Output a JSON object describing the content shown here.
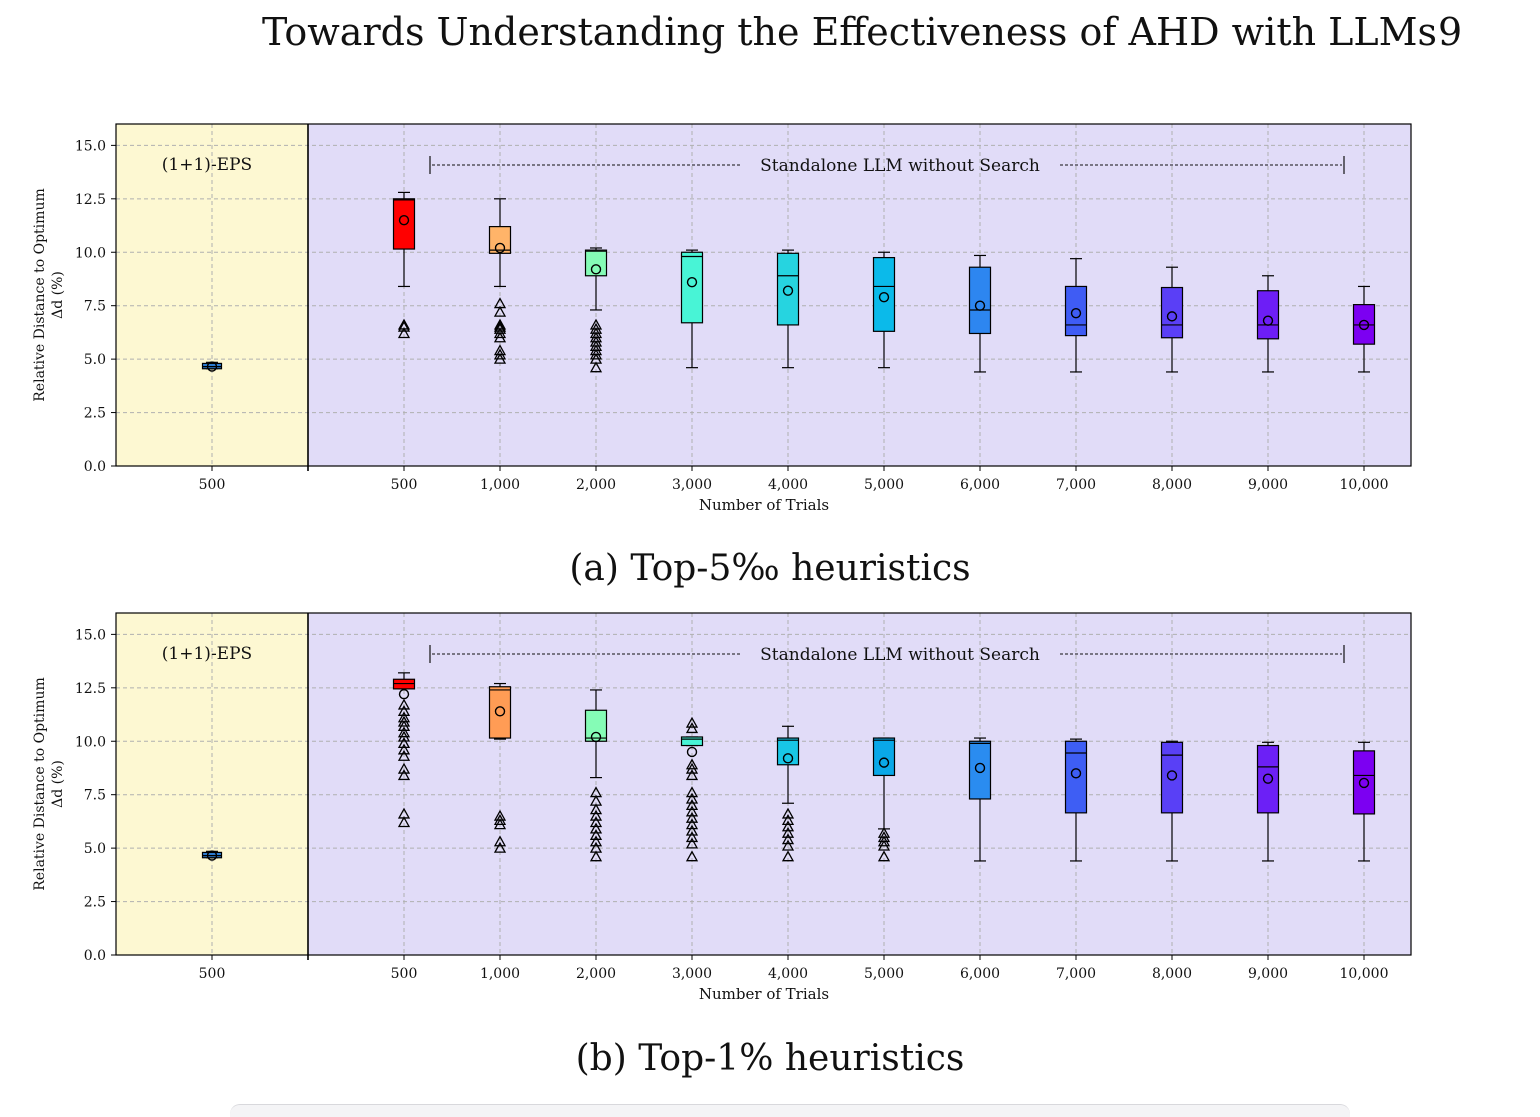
{
  "header": {
    "running_title": "Towards Understanding the Effectiveness of AHD with LLMs",
    "page_number": "9"
  },
  "chart_data": [
    {
      "type": "boxplot",
      "ylabel": "Relative Distance to Optimum",
      "ylabel2": "Δd (%)",
      "xlabel": "Number of Trials",
      "ylim": [
        0,
        16
      ],
      "yticks": [
        "0.0",
        "2.5",
        "5.0",
        "7.5",
        "10.0",
        "12.5",
        "15.0"
      ],
      "grid": true,
      "region_labels": {
        "left": "(1+1)-EPS",
        "right": "Standalone LLM without Search"
      },
      "region_colors": {
        "left": "#fdf8d2",
        "right": "#e1dcf8"
      },
      "series": [
        {
          "x": "500",
          "group": "(1+1)-EPS",
          "color": "#2b7bd0",
          "whislo": 4.55,
          "q1": 4.55,
          "med": 4.65,
          "q3": 4.8,
          "whishi": 4.85,
          "mean": 4.65,
          "fliers": []
        },
        {
          "x": "500",
          "color": "#ff0000",
          "whislo": 8.4,
          "q1": 10.15,
          "med": 12.45,
          "q3": 12.5,
          "whishi": 12.8,
          "mean": 11.5,
          "fliers": [
            6.2,
            6.5,
            6.6
          ]
        },
        {
          "x": "1,000",
          "color": "#ffb469",
          "whislo": 8.4,
          "q1": 9.95,
          "med": 10.1,
          "q3": 11.2,
          "whishi": 12.5,
          "mean": 10.2,
          "fliers": [
            5.0,
            5.2,
            5.4,
            6.0,
            6.2,
            6.4,
            6.5,
            6.6,
            7.2,
            7.6
          ]
        },
        {
          "x": "2,000",
          "color": "#85fcb6",
          "whislo": 7.3,
          "q1": 8.9,
          "med": 10.05,
          "q3": 10.1,
          "whishi": 10.2,
          "mean": 9.2,
          "fliers": [
            4.6,
            5.0,
            5.2,
            5.4,
            5.6,
            5.8,
            6.0,
            6.2,
            6.4,
            6.6
          ]
        },
        {
          "x": "3,000",
          "color": "#48f4d6",
          "whislo": 4.6,
          "q1": 6.7,
          "med": 9.8,
          "q3": 10.0,
          "whishi": 10.1,
          "mean": 8.6,
          "fliers": []
        },
        {
          "x": "4,000",
          "color": "#26d4e0",
          "whislo": 4.6,
          "q1": 6.6,
          "med": 8.9,
          "q3": 9.95,
          "whishi": 10.1,
          "mean": 8.2,
          "fliers": []
        },
        {
          "x": "5,000",
          "color": "#0bbaea",
          "whislo": 4.6,
          "q1": 6.3,
          "med": 8.4,
          "q3": 9.75,
          "whishi": 10.0,
          "mean": 7.9,
          "fliers": []
        },
        {
          "x": "6,000",
          "color": "#2d86f0",
          "whislo": 4.4,
          "q1": 6.2,
          "med": 7.3,
          "q3": 9.3,
          "whishi": 9.85,
          "mean": 7.5,
          "fliers": []
        },
        {
          "x": "7,000",
          "color": "#3f5cf4",
          "whislo": 4.4,
          "q1": 6.1,
          "med": 6.6,
          "q3": 8.4,
          "whishi": 9.7,
          "mean": 7.15,
          "fliers": []
        },
        {
          "x": "8,000",
          "color": "#5a3ff6",
          "whislo": 4.4,
          "q1": 6.0,
          "med": 6.6,
          "q3": 8.35,
          "whishi": 9.3,
          "mean": 7.0,
          "fliers": []
        },
        {
          "x": "9,000",
          "color": "#6d1ef6",
          "whislo": 4.4,
          "q1": 5.95,
          "med": 6.6,
          "q3": 8.2,
          "whishi": 8.9,
          "mean": 6.8,
          "fliers": []
        },
        {
          "x": "10,000",
          "color": "#7c00f2",
          "whislo": 4.4,
          "q1": 5.7,
          "med": 6.6,
          "q3": 7.55,
          "whishi": 8.4,
          "mean": 6.6,
          "fliers": []
        }
      ]
    },
    {
      "type": "boxplot",
      "ylabel": "Relative Distance to Optimum",
      "ylabel2": "Δd (%)",
      "xlabel": "Number of Trials",
      "ylim": [
        0,
        16
      ],
      "yticks": [
        "0.0",
        "2.5",
        "5.0",
        "7.5",
        "10.0",
        "12.5",
        "15.0"
      ],
      "grid": true,
      "region_labels": {
        "left": "(1+1)-EPS",
        "right": "Standalone LLM without Search"
      },
      "region_colors": {
        "left": "#fdf8d2",
        "right": "#e1dcf8"
      },
      "series": [
        {
          "x": "500",
          "group": "(1+1)-EPS",
          "color": "#2b7bd0",
          "whislo": 4.55,
          "q1": 4.55,
          "med": 4.65,
          "q3": 4.8,
          "whishi": 4.85,
          "mean": 4.65,
          "fliers": []
        },
        {
          "x": "500",
          "color": "#ff0000",
          "whislo": 12.45,
          "q1": 12.45,
          "med": 12.7,
          "q3": 12.9,
          "whishi": 13.2,
          "mean": 12.2,
          "fliers": [
            6.2,
            6.6,
            8.4,
            8.7,
            9.3,
            9.6,
            9.9,
            10.2,
            10.4,
            10.7,
            10.9,
            11.1,
            11.4,
            11.7
          ]
        },
        {
          "x": "1,000",
          "color": "#ff9c55",
          "whislo": 10.1,
          "q1": 10.15,
          "med": 12.4,
          "q3": 12.55,
          "whishi": 12.7,
          "mean": 11.4,
          "fliers": [
            5.0,
            5.3,
            6.1,
            6.3,
            6.5
          ]
        },
        {
          "x": "2,000",
          "color": "#85fcb6",
          "whislo": 8.3,
          "q1": 10.0,
          "med": 10.15,
          "q3": 11.45,
          "whishi": 12.4,
          "mean": 10.2,
          "fliers": [
            4.6,
            5.0,
            5.3,
            5.6,
            5.9,
            6.2,
            6.5,
            6.8,
            7.2,
            7.6
          ]
        },
        {
          "x": "3,000",
          "color": "#48f4d6",
          "whislo": 9.8,
          "q1": 9.8,
          "med": 10.1,
          "q3": 10.2,
          "whishi": 10.2,
          "mean": 9.5,
          "fliers": [
            4.6,
            5.2,
            5.5,
            5.8,
            6.1,
            6.4,
            6.7,
            7.0,
            7.3,
            7.6,
            8.4,
            8.7,
            8.9,
            10.6,
            10.85
          ]
        },
        {
          "x": "4,000",
          "color": "#18c6e6",
          "whislo": 7.1,
          "q1": 8.9,
          "med": 10.05,
          "q3": 10.15,
          "whishi": 10.7,
          "mean": 9.2,
          "fliers": [
            4.6,
            5.1,
            5.4,
            5.7,
            6.0,
            6.3,
            6.6
          ]
        },
        {
          "x": "5,000",
          "color": "#0aa8e8",
          "whislo": 5.9,
          "q1": 8.4,
          "med": 10.05,
          "q3": 10.15,
          "whishi": 10.15,
          "mean": 9.0,
          "fliers": [
            4.6,
            5.1,
            5.3,
            5.5,
            5.7
          ]
        },
        {
          "x": "6,000",
          "color": "#2a8cf0",
          "whislo": 4.4,
          "q1": 7.3,
          "med": 9.9,
          "q3": 10.0,
          "whishi": 10.15,
          "mean": 8.75,
          "fliers": []
        },
        {
          "x": "7,000",
          "color": "#3e5ef4",
          "whislo": 4.4,
          "q1": 6.65,
          "med": 9.45,
          "q3": 10.0,
          "whishi": 10.1,
          "mean": 8.5,
          "fliers": []
        },
        {
          "x": "8,000",
          "color": "#5940f6",
          "whislo": 4.4,
          "q1": 6.65,
          "med": 9.35,
          "q3": 9.95,
          "whishi": 10.0,
          "mean": 8.4,
          "fliers": []
        },
        {
          "x": "9,000",
          "color": "#6c20f6",
          "whislo": 4.4,
          "q1": 6.65,
          "med": 8.8,
          "q3": 9.8,
          "whishi": 9.95,
          "mean": 8.25,
          "fliers": []
        },
        {
          "x": "10,000",
          "color": "#7c00f2",
          "whislo": 4.4,
          "q1": 6.6,
          "med": 8.4,
          "q3": 9.55,
          "whishi": 9.95,
          "mean": 8.05,
          "fliers": []
        }
      ]
    }
  ],
  "captions": [
    "(a) Top-5‰ heuristics",
    "(b) Top-1% heuristics"
  ]
}
